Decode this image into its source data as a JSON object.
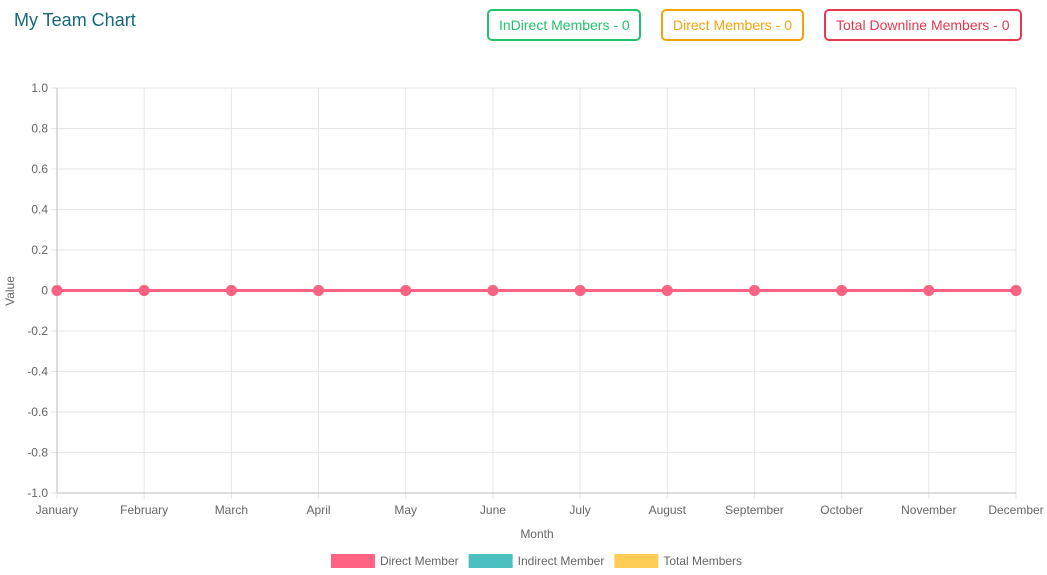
{
  "header": {
    "title": "My Team Chart"
  },
  "badges": {
    "indirect": {
      "label": "InDirect Members - 0",
      "color": "#22c36c"
    },
    "direct": {
      "label": "Direct Members - 0",
      "color": "#f0a30a"
    },
    "total": {
      "label": "Total Downline Members - 0",
      "color": "#e53950"
    }
  },
  "chart_data": {
    "type": "line",
    "categories": [
      "January",
      "February",
      "March",
      "April",
      "May",
      "June",
      "July",
      "August",
      "September",
      "October",
      "November",
      "December"
    ],
    "series": [
      {
        "name": "Direct Member",
        "values": [
          0,
          0,
          0,
          0,
          0,
          0,
          0,
          0,
          0,
          0,
          0,
          0
        ],
        "color": "#ff6384"
      },
      {
        "name": "Indirect Member",
        "values": [
          0,
          0,
          0,
          0,
          0,
          0,
          0,
          0,
          0,
          0,
          0,
          0
        ],
        "color": "#4bc0c0"
      },
      {
        "name": "Total Members",
        "values": [
          0,
          0,
          0,
          0,
          0,
          0,
          0,
          0,
          0,
          0,
          0,
          0
        ],
        "color": "#ffcd56"
      }
    ],
    "xlabel": "Month",
    "ylabel": "Value",
    "ylim": [
      -1.0,
      1.0
    ],
    "yticks": [
      "1.0",
      "0.8",
      "0.6",
      "0.4",
      "0.2",
      "0",
      "-0.2",
      "-0.4",
      "-0.6",
      "-0.8",
      "-1.0"
    ],
    "ytick_values": [
      1.0,
      0.8,
      0.6,
      0.4,
      0.2,
      0,
      -0.2,
      -0.4,
      -0.6,
      -0.8,
      -1.0
    ],
    "grid": true,
    "legend_position": "bottom"
  }
}
